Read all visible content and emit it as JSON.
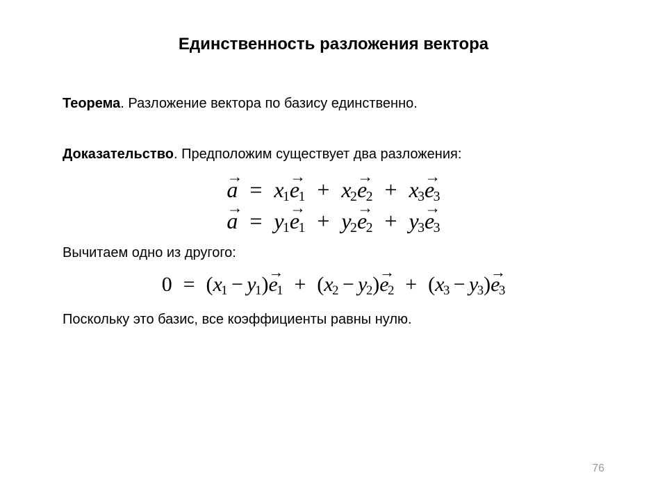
{
  "title": "Единственность разложения вектора",
  "theorem": {
    "label": "Теорема",
    "text": ". Разложение вектора по базису единственно."
  },
  "proof": {
    "label": "Доказательство",
    "intro": ". Предположим существует два разложения:",
    "mid_text": "Вычитаем одно из другого:",
    "final_text": "Поскольку это базис, все коэффициенты равны нулю."
  },
  "math": {
    "vec_a": "a",
    "vec_e": "e",
    "var_x": "x",
    "var_y": "y",
    "zero": "0",
    "eq": "=",
    "plus": "+",
    "minus": "−",
    "lp": "(",
    "rp": ")",
    "arrow": "→",
    "sub1": "1",
    "sub2": "2",
    "sub3": "3"
  },
  "page_number": "76",
  "colors": {
    "text": "#000000",
    "bg": "#ffffff",
    "pagenum": "#999999"
  },
  "fonts": {
    "body": "Arial",
    "math": "Times New Roman",
    "title_size_pt": 24,
    "body_size_pt": 20,
    "math_size_pt": 32
  }
}
